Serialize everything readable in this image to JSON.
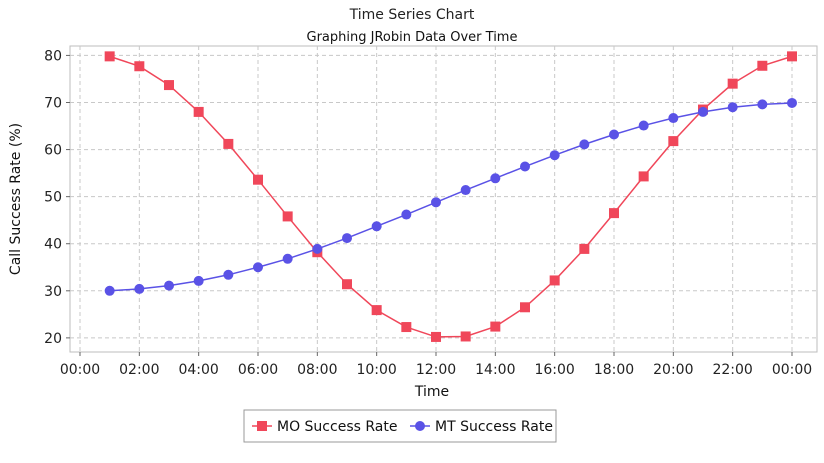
{
  "chart_data": {
    "type": "line",
    "title": "Time Series Chart",
    "subtitle": "Graphing JRobin Data Over Time",
    "xlabel": "Time",
    "ylabel": "Call Success Rate (%)",
    "x": [
      "01:00",
      "02:00",
      "03:00",
      "04:00",
      "05:00",
      "06:00",
      "07:00",
      "08:00",
      "09:00",
      "10:00",
      "11:00",
      "12:00",
      "13:00",
      "14:00",
      "15:00",
      "16:00",
      "17:00",
      "18:00",
      "19:00",
      "20:00",
      "21:00",
      "22:00",
      "23:00",
      "00:00"
    ],
    "x_ticks": [
      "00:00",
      "02:00",
      "04:00",
      "06:00",
      "08:00",
      "10:00",
      "12:00",
      "14:00",
      "16:00",
      "18:00",
      "20:00",
      "22:00",
      "00:00"
    ],
    "y_ticks": [
      20,
      30,
      40,
      50,
      60,
      70,
      80
    ],
    "ylim": [
      17,
      82
    ],
    "grid": true,
    "legend_position": "bottom",
    "series": [
      {
        "name": "MO Success Rate",
        "color": "#f0475a",
        "marker": "square",
        "values": [
          79.8,
          77.7,
          73.7,
          68.0,
          61.2,
          53.6,
          45.8,
          38.2,
          31.4,
          25.9,
          22.3,
          20.2,
          20.3,
          22.4,
          26.5,
          32.2,
          38.9,
          46.5,
          54.3,
          61.8,
          68.5,
          74.0,
          77.8,
          79.8
        ]
      },
      {
        "name": "MT Success Rate",
        "color": "#5a52e6",
        "marker": "circle",
        "values": [
          30.0,
          30.4,
          31.1,
          32.1,
          33.4,
          35.0,
          36.8,
          38.9,
          41.2,
          43.7,
          46.2,
          48.8,
          51.4,
          53.9,
          56.4,
          58.8,
          61.1,
          63.2,
          65.1,
          66.7,
          68.0,
          69.0,
          69.6,
          69.9
        ]
      }
    ]
  }
}
